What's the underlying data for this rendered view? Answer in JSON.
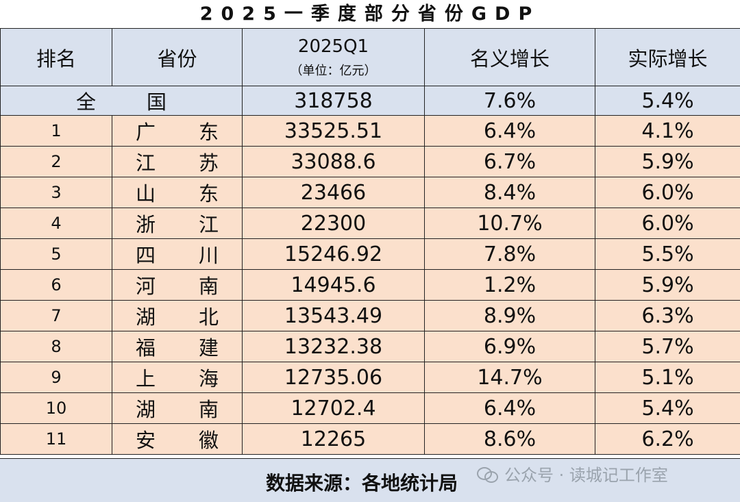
{
  "title": "2025一季度部分省份GDP",
  "headers": {
    "rank": "排名",
    "province": "省份",
    "gdp_main": "2025Q1",
    "gdp_unit": "（单位：亿元）",
    "nominal": "名义增长",
    "real": "实际增长"
  },
  "total": {
    "label_a": "全",
    "label_b": "国",
    "gdp": "318758",
    "nominal": "7.6%",
    "real": "5.4%"
  },
  "rows": [
    {
      "rank": "1",
      "p1": "广",
      "p2": "东",
      "gdp": "33525.51",
      "nominal": "6.4%",
      "real": "4.1%"
    },
    {
      "rank": "2",
      "p1": "江",
      "p2": "苏",
      "gdp": "33088.6",
      "nominal": "6.7%",
      "real": "5.9%"
    },
    {
      "rank": "3",
      "p1": "山",
      "p2": "东",
      "gdp": "23466",
      "nominal": "8.4%",
      "real": "6.0%"
    },
    {
      "rank": "4",
      "p1": "浙",
      "p2": "江",
      "gdp": "22300",
      "nominal": "10.7%",
      "real": "6.0%"
    },
    {
      "rank": "5",
      "p1": "四",
      "p2": "川",
      "gdp": "15246.92",
      "nominal": "7.8%",
      "real": "5.5%"
    },
    {
      "rank": "6",
      "p1": "河",
      "p2": "南",
      "gdp": "14945.6",
      "nominal": "1.2%",
      "real": "5.9%"
    },
    {
      "rank": "7",
      "p1": "湖",
      "p2": "北",
      "gdp": "13543.49",
      "nominal": "8.9%",
      "real": "6.3%"
    },
    {
      "rank": "8",
      "p1": "福",
      "p2": "建",
      "gdp": "13232.38",
      "nominal": "6.9%",
      "real": "5.7%"
    },
    {
      "rank": "9",
      "p1": "上",
      "p2": "海",
      "gdp": "12735.06",
      "nominal": "14.7%",
      "real": "5.1%"
    },
    {
      "rank": "10",
      "p1": "湖",
      "p2": "南",
      "gdp": "12702.4",
      "nominal": "6.4%",
      "real": "5.4%"
    },
    {
      "rank": "11",
      "p1": "安",
      "p2": "徽",
      "gdp": "12265",
      "nominal": "8.6%",
      "real": "6.2%"
    }
  ],
  "footer": {
    "source": "数据来源：各地统计局",
    "watermark": "公众号 · 读城记工作室",
    "watermark_icon": "wechat-icon"
  },
  "colors": {
    "header_bg": "#d9e1ee",
    "row_bg": "#fbe0cc",
    "border": "#222222"
  }
}
